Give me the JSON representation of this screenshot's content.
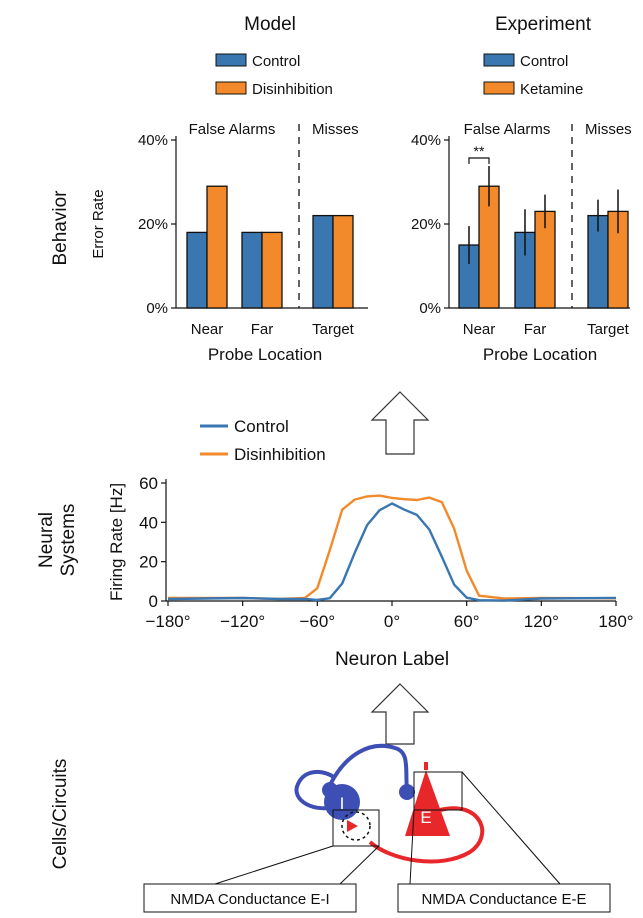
{
  "levels": {
    "behavior": "Behavior",
    "neural_line1": "Neural",
    "neural_line2": "Systems",
    "cells": "Cells/Circuits"
  },
  "colors": {
    "control": "#3a76b0",
    "treatment": "#f28a2c",
    "inhib_neuron": "#3d4fb5",
    "excit_neuron": "#e8272a"
  },
  "chart_data": [
    {
      "type": "bar",
      "title": "Model",
      "legend": [
        "Control",
        "Disinhibition"
      ],
      "section_labels": [
        "False Alarms",
        "Misses"
      ],
      "categories": [
        "Near",
        "Far",
        "Target"
      ],
      "series": [
        {
          "name": "Control",
          "values": [
            18,
            18,
            22
          ]
        },
        {
          "name": "Disinhibition",
          "values": [
            29,
            18,
            22
          ]
        }
      ],
      "xlabel": "Probe Location",
      "ylabel": "Error Rate",
      "yticks": [
        "0%",
        "20%",
        "40%"
      ],
      "ylim": [
        0,
        40
      ]
    },
    {
      "type": "bar",
      "title": "Experiment",
      "legend": [
        "Control",
        "Ketamine"
      ],
      "section_labels": [
        "False Alarms",
        "Misses"
      ],
      "categories": [
        "Near",
        "Far",
        "Target"
      ],
      "series": [
        {
          "name": "Control",
          "values": [
            15,
            18,
            22
          ],
          "errors": [
            4.5,
            5.5,
            3.8
          ]
        },
        {
          "name": "Ketamine",
          "values": [
            29,
            23,
            23
          ],
          "errors": [
            4.8,
            4.0,
            5.2
          ]
        }
      ],
      "significance": "**",
      "xlabel": "Probe Location",
      "yticks": [
        "0%",
        "20%",
        "40%"
      ],
      "ylim": [
        0,
        40
      ]
    },
    {
      "type": "line",
      "legend": [
        "Control",
        "Disinhibition"
      ],
      "x": [
        -180,
        -120,
        -90,
        -70,
        -60,
        -50,
        -40,
        -30,
        -20,
        -10,
        0,
        10,
        20,
        30,
        40,
        50,
        60,
        70,
        90,
        120,
        180
      ],
      "series": [
        {
          "name": "Control",
          "values": [
            1,
            1,
            0.5,
            1,
            1,
            2,
            9,
            24,
            38,
            46,
            50,
            47,
            44,
            36,
            22,
            8,
            2,
            1,
            0.5,
            1,
            1
          ]
        },
        {
          "name": "Disinhibition",
          "values": [
            1,
            1,
            1,
            2,
            7,
            26,
            46,
            51,
            53,
            54,
            53,
            52,
            51,
            52,
            50,
            37,
            16,
            3,
            1,
            1,
            1
          ]
        }
      ],
      "xticks": [
        "−180°",
        "−120°",
        "−60°",
        "0°",
        "60°",
        "120°",
        "180°"
      ],
      "xlabel": "Neuron Label",
      "ylabel": "Firing Rate [Hz]",
      "yticks": [
        "0",
        "20",
        "40",
        "60"
      ],
      "xlim": [
        -180,
        180
      ],
      "ylim": [
        0,
        60
      ]
    }
  ],
  "circuit": {
    "inhib_label": "I",
    "excit_label": "E",
    "box_ei": "NMDA Conductance E-I",
    "box_ee": "NMDA Conductance E-E"
  }
}
